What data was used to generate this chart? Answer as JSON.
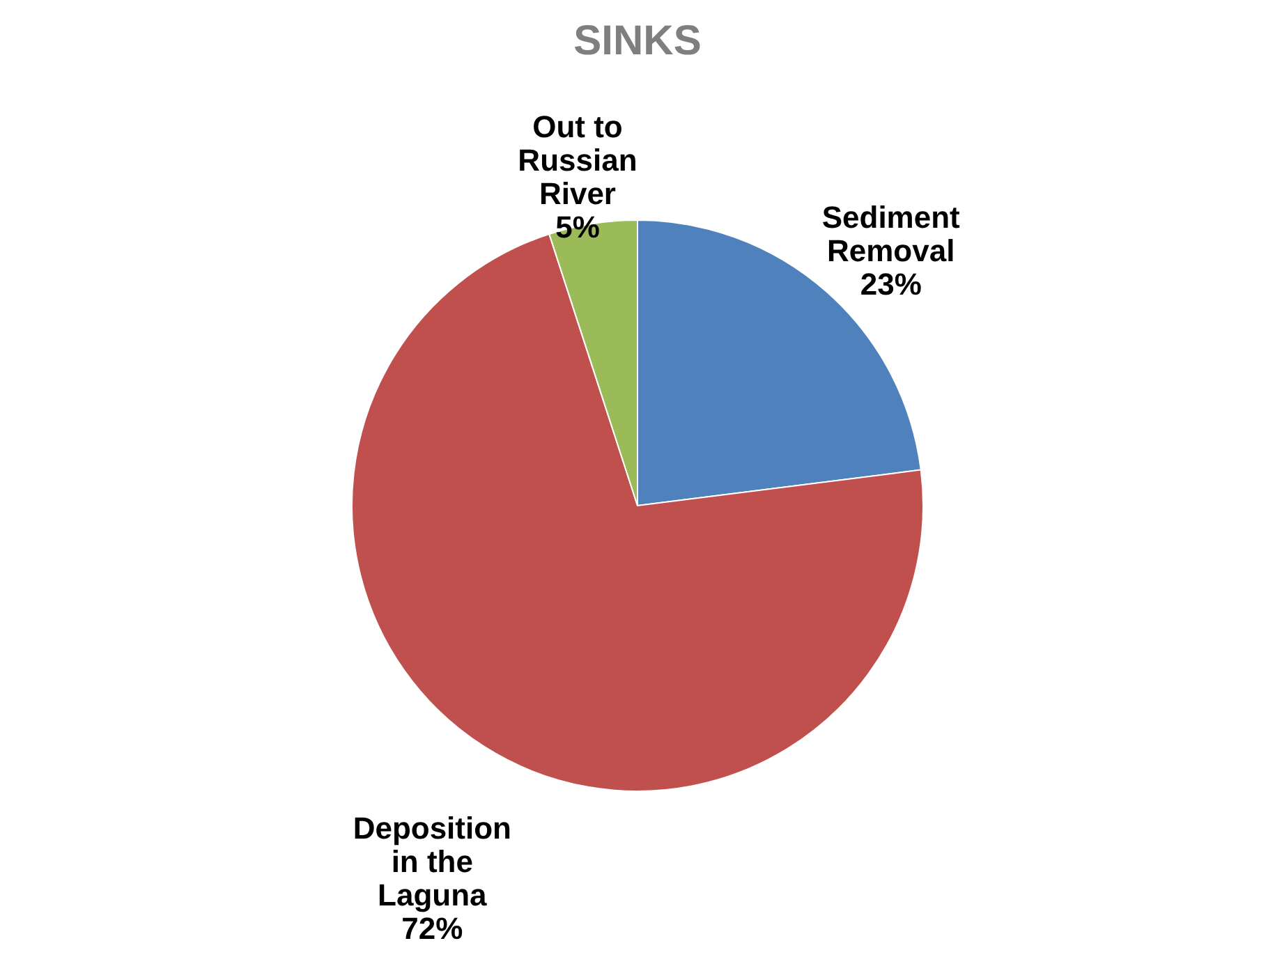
{
  "chart_data": {
    "type": "pie",
    "title": "SINKS",
    "categories": [
      "Sediment\nRemoval",
      "Deposition\nin the\nLaguna",
      "Out to\nRussian\nRiver"
    ],
    "values": [
      23,
      72,
      5
    ],
    "value_labels": [
      "23%",
      "72%",
      "5%"
    ],
    "colors": [
      "#4f81bd",
      "#c0504d",
      "#9bbb59"
    ],
    "legend": false
  }
}
